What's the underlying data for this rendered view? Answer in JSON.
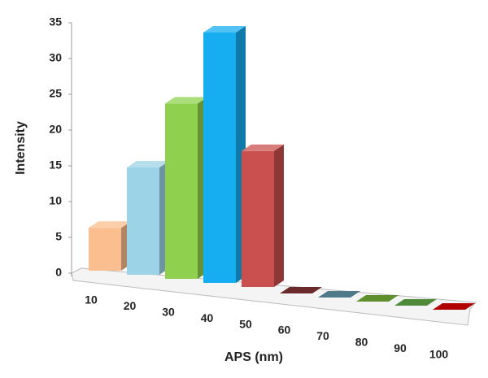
{
  "chart_data": {
    "type": "bar",
    "x_label": "APS (nm)",
    "y_label": "Intensity",
    "categories": [
      "10",
      "20",
      "30",
      "40",
      "50",
      "60",
      "70",
      "80",
      "90",
      "100"
    ],
    "values": [
      6,
      15,
      24.5,
      35,
      19,
      0,
      0,
      0,
      0,
      0
    ],
    "colors": [
      "#fbbf8f",
      "#9dd3e6",
      "#8fd14f",
      "#16aef0",
      "#c9504f",
      "#6b2a2a",
      "#4f7a8a",
      "#5f8f2c",
      "#4f8a3a",
      "#b00000"
    ],
    "ylim": [
      0,
      35
    ],
    "yticks": [
      0,
      5,
      10,
      15,
      20,
      25,
      30,
      35
    ]
  }
}
